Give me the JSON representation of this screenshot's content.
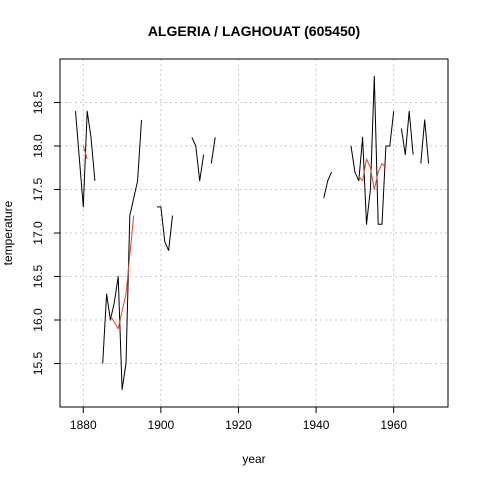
{
  "chart_data": {
    "type": "line",
    "title": "ALGERIA / LAGHOUAT (605450)",
    "xlabel": "year",
    "ylabel": "temperature",
    "xlim": [
      1874,
      1974
    ],
    "ylim": [
      15.0,
      19.0
    ],
    "x_ticks": [
      1880,
      1900,
      1920,
      1940,
      1960
    ],
    "y_ticks": [
      15.5,
      16.0,
      16.5,
      17.0,
      17.5,
      18.0,
      18.5
    ],
    "grid": true,
    "series": [
      {
        "color": "#000000",
        "segments": [
          [
            [
              1878,
              18.4
            ],
            [
              1880,
              17.3
            ],
            [
              1881,
              18.4
            ],
            [
              1882,
              18.1
            ],
            [
              1883,
              17.6
            ]
          ],
          [
            [
              1885,
              15.5
            ],
            [
              1886,
              16.3
            ],
            [
              1887,
              16.0
            ],
            [
              1888,
              16.2
            ],
            [
              1889,
              16.5
            ],
            [
              1890,
              15.2
            ],
            [
              1891,
              15.5
            ],
            [
              1892,
              17.2
            ],
            [
              1894,
              17.6
            ],
            [
              1895,
              18.3
            ]
          ],
          [
            [
              1899,
              17.3
            ],
            [
              1900,
              17.3
            ],
            [
              1901,
              16.9
            ],
            [
              1902,
              16.8
            ],
            [
              1903,
              17.2
            ]
          ],
          [
            [
              1908,
              18.1
            ],
            [
              1909,
              18.0
            ],
            [
              1910,
              17.6
            ],
            [
              1911,
              17.9
            ]
          ],
          [
            [
              1913,
              17.8
            ],
            [
              1914,
              18.1
            ]
          ],
          [
            [
              1942,
              17.4
            ],
            [
              1943,
              17.6
            ],
            [
              1944,
              17.7
            ]
          ],
          [
            [
              1949,
              18.0
            ],
            [
              1950,
              17.7
            ],
            [
              1951,
              17.6
            ],
            [
              1952,
              18.1
            ],
            [
              1953,
              17.1
            ],
            [
              1954,
              17.5
            ],
            [
              1955,
              18.8
            ],
            [
              1956,
              17.1
            ],
            [
              1957,
              17.1
            ],
            [
              1958,
              18.0
            ],
            [
              1959,
              18.0
            ],
            [
              1960,
              18.4
            ]
          ],
          [
            [
              1962,
              18.2
            ],
            [
              1963,
              17.9
            ],
            [
              1964,
              18.4
            ],
            [
              1965,
              17.9
            ]
          ],
          [
            [
              1967,
              17.8
            ],
            [
              1968,
              18.3
            ],
            [
              1969,
              17.8
            ]
          ]
        ]
      },
      {
        "color": "#e0442b",
        "segments": [
          [
            [
              1880,
              18.0
            ],
            [
              1881,
              17.85
            ]
          ],
          [
            [
              1887,
              16.05
            ],
            [
              1889,
              15.9
            ],
            [
              1891,
              16.3
            ],
            [
              1893,
              17.2
            ]
          ],
          [
            [
              1951,
              17.65
            ],
            [
              1952,
              17.6
            ],
            [
              1953,
              17.85
            ],
            [
              1954,
              17.75
            ],
            [
              1955,
              17.5
            ],
            [
              1956,
              17.7
            ],
            [
              1957,
              17.8
            ],
            [
              1958,
              17.75
            ]
          ]
        ]
      }
    ]
  }
}
